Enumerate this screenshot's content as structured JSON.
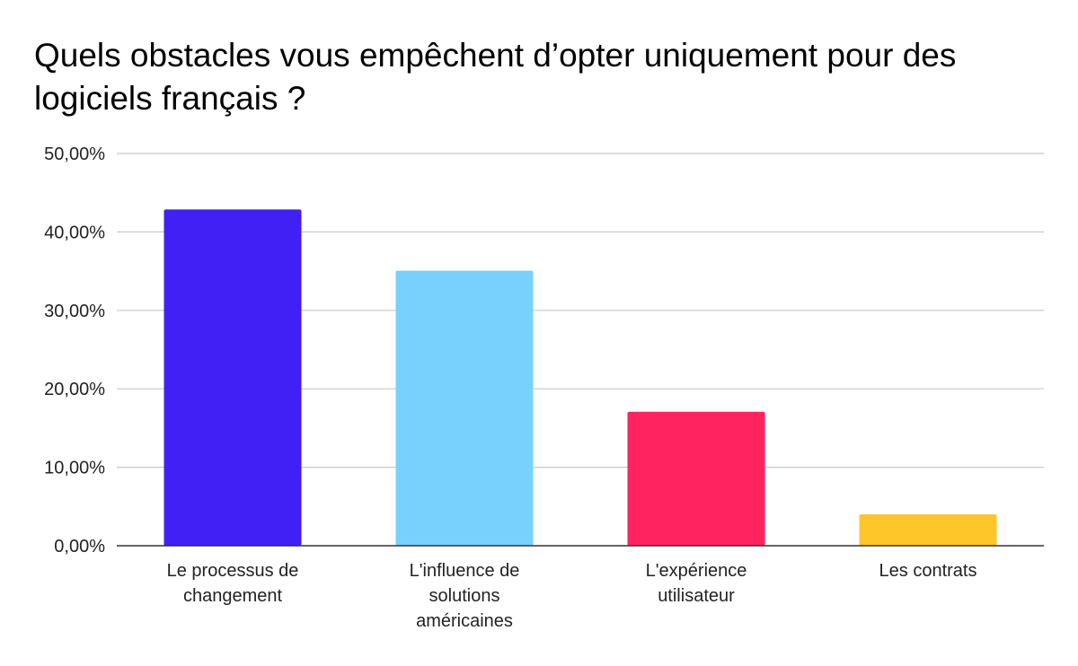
{
  "chart_data": {
    "type": "bar",
    "title": "Quels obstacles vous empêchent d’opter uniquement pour des logiciels français ?",
    "xlabel": "",
    "ylabel": "",
    "ylim": [
      0,
      50
    ],
    "y_ticks": [
      "0,00%",
      "10,00%",
      "20,00%",
      "30,00%",
      "40,00%",
      "50,00%"
    ],
    "grid": true,
    "legend": "none",
    "categories": [
      [
        "Le processus de",
        "changement"
      ],
      [
        "L'influence de",
        "solutions",
        "américaines"
      ],
      [
        "L'expérience",
        "utilisateur"
      ],
      [
        "Les contrats"
      ]
    ],
    "values": [
      42.86,
      35.06,
      17.08,
      4.0
    ],
    "colors": [
      "#4020f5",
      "#78d0fc",
      "#ff2360",
      "#ffc629"
    ]
  }
}
